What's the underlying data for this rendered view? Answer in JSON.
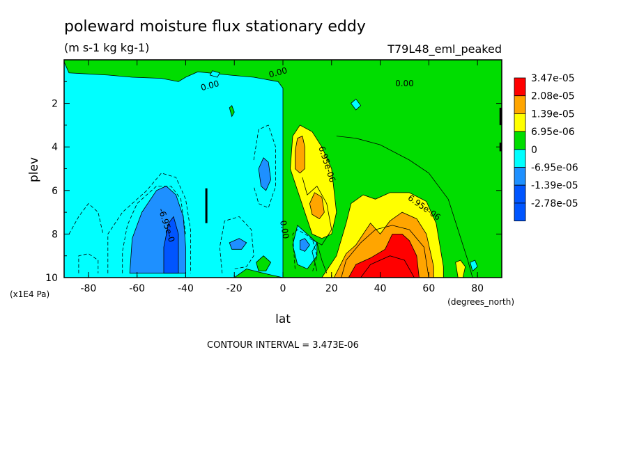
{
  "chart_data": {
    "type": "heatmap",
    "title": "poleward moisture flux stationary eddy",
    "subtitle": "(m s-1 kg kg-1)",
    "run_label": "T79L48_eml_peaked",
    "xlabel": "lat",
    "ylabel": "plev",
    "x_units": "(degrees_north)",
    "y_units": "(x1E4 Pa)",
    "xlim": [
      -90,
      90
    ],
    "ylim": [
      0,
      10
    ],
    "y_inverted": true,
    "x_ticks": [
      -80,
      -60,
      -40,
      -20,
      0,
      20,
      40,
      60,
      80
    ],
    "y_ticks": [
      2,
      4,
      6,
      8,
      10
    ],
    "contour_interval_text": "CONTOUR INTERVAL = 3.473E-06",
    "legend": {
      "placement": "right",
      "levels": [
        {
          "label": "3.47e-05",
          "color": "#ff0000"
        },
        {
          "label": "2.08e-05",
          "color": "#ffa500"
        },
        {
          "label": "1.39e-05",
          "color": "#ffff00"
        },
        {
          "label": "6.95e-06",
          "color": "#00dd00"
        },
        {
          "label": "0",
          "color": "#00ffff"
        },
        {
          "label": "-6.95e-06",
          "color": "#1e90ff"
        },
        {
          "label": "-1.39e-05",
          "color": "#0055ff"
        },
        {
          "label": "-2.78e-05",
          "color": "#0055ff"
        }
      ]
    },
    "background_color": "#00dd00",
    "regions": [
      {
        "color": "#00ffff",
        "points": [
          [
            -90,
            0.1
          ],
          [
            -90,
            10
          ],
          [
            -20,
            10
          ],
          [
            -15,
            9.6
          ],
          [
            -8,
            9.8
          ],
          [
            0,
            10
          ],
          [
            0,
            1.3
          ],
          [
            -2,
            1.0
          ],
          [
            -12,
            0.8
          ],
          [
            -22,
            0.7
          ],
          [
            -35,
            0.55
          ],
          [
            -40,
            0.8
          ],
          [
            -43,
            1.0
          ],
          [
            -50,
            0.85
          ],
          [
            -62,
            0.8
          ],
          [
            -72,
            0.7
          ],
          [
            -80,
            0.65
          ],
          [
            -88,
            0.6
          ]
        ]
      },
      {
        "color": "#00ffff",
        "points": [
          [
            6,
            7.6
          ],
          [
            10,
            8.0
          ],
          [
            14,
            8.4
          ],
          [
            14,
            9.0
          ],
          [
            10,
            9.6
          ],
          [
            6,
            9.4
          ],
          [
            4,
            8.5
          ]
        ]
      },
      {
        "color": "#1e90ff",
        "points": [
          [
            -63,
            9.8
          ],
          [
            -62,
            8.2
          ],
          [
            -58,
            7.0
          ],
          [
            -52,
            6.0
          ],
          [
            -48,
            5.8
          ],
          [
            -44,
            6.2
          ],
          [
            -41,
            7.2
          ],
          [
            -40,
            8.6
          ],
          [
            -40,
            9.8
          ]
        ]
      },
      {
        "color": "#0055ff",
        "points": [
          [
            -49,
            9.8
          ],
          [
            -49,
            8.6
          ],
          [
            -47,
            7.5
          ],
          [
            -45,
            7.2
          ],
          [
            -43,
            8.0
          ],
          [
            -43,
            9.8
          ]
        ]
      },
      {
        "color": "#1e90ff",
        "points": [
          [
            -10,
            5.0
          ],
          [
            -8,
            4.5
          ],
          [
            -6,
            4.7
          ],
          [
            -5,
            5.5
          ],
          [
            -7,
            6.0
          ],
          [
            -9,
            5.8
          ]
        ]
      },
      {
        "color": "#1e90ff",
        "points": [
          [
            -22,
            8.4
          ],
          [
            -18,
            8.2
          ],
          [
            -15,
            8.4
          ],
          [
            -17,
            8.7
          ],
          [
            -21,
            8.7
          ]
        ]
      },
      {
        "color": "#1e90ff",
        "points": [
          [
            7,
            8.3
          ],
          [
            9,
            8.2
          ],
          [
            11,
            8.5
          ],
          [
            9,
            8.8
          ],
          [
            7,
            8.7
          ]
        ]
      },
      {
        "color": "#00ffff",
        "points": [
          [
            -30,
            0.7
          ],
          [
            -29,
            0.5
          ],
          [
            -26,
            0.6
          ],
          [
            -27,
            0.8
          ]
        ]
      },
      {
        "color": "#00ffff",
        "points": [
          [
            28,
            2.0
          ],
          [
            30,
            1.8
          ],
          [
            32,
            2.1
          ],
          [
            30,
            2.3
          ]
        ]
      },
      {
        "color": "#00ffff",
        "points": [
          [
            77,
            9.3
          ],
          [
            79,
            9.2
          ],
          [
            80,
            9.5
          ],
          [
            78,
            9.7
          ]
        ]
      },
      {
        "color": "#00dd00",
        "points": [
          [
            -11,
            9.3
          ],
          [
            -8,
            9.0
          ],
          [
            -5,
            9.3
          ],
          [
            -7,
            9.7
          ],
          [
            -10,
            9.7
          ]
        ]
      },
      {
        "color": "#00dd00",
        "points": [
          [
            -22,
            2.2
          ],
          [
            -21,
            2.1
          ],
          [
            -20,
            2.4
          ],
          [
            -21,
            2.6
          ]
        ]
      },
      {
        "color": "#ffff00",
        "points": [
          [
            3,
            5.0
          ],
          [
            4,
            3.5
          ],
          [
            7,
            3.0
          ],
          [
            12,
            3.3
          ],
          [
            16,
            4.0
          ],
          [
            20,
            5.0
          ],
          [
            22,
            7.0
          ],
          [
            20,
            8.0
          ],
          [
            16,
            8.2
          ],
          [
            12,
            8.0
          ],
          [
            9,
            7.0
          ],
          [
            6,
            6.0
          ]
        ]
      },
      {
        "color": "#ffa500",
        "points": [
          [
            5,
            4.2
          ],
          [
            6,
            3.6
          ],
          [
            8,
            3.5
          ],
          [
            9,
            4.0
          ],
          [
            9,
            5.0
          ],
          [
            7,
            5.2
          ],
          [
            5,
            5.0
          ]
        ]
      },
      {
        "color": "#ffa500",
        "points": [
          [
            11,
            6.6
          ],
          [
            13,
            6.1
          ],
          [
            16,
            6.3
          ],
          [
            17,
            7.0
          ],
          [
            15,
            7.3
          ],
          [
            12,
            7.1
          ]
        ]
      },
      {
        "color": "#ffff00",
        "points": [
          [
            16,
            10
          ],
          [
            22,
            9.0
          ],
          [
            26,
            7.5
          ],
          [
            28,
            6.6
          ],
          [
            33,
            6.2
          ],
          [
            38,
            6.4
          ],
          [
            44,
            6.1
          ],
          [
            52,
            6.1
          ],
          [
            59,
            6.5
          ],
          [
            63,
            7.5
          ],
          [
            66,
            9.5
          ],
          [
            66,
            10
          ]
        ]
      },
      {
        "color": "#ffff00",
        "points": [
          [
            71,
            9.3
          ],
          [
            73,
            9.2
          ],
          [
            75,
            9.5
          ],
          [
            74,
            10
          ],
          [
            72,
            10
          ]
        ]
      },
      {
        "color": "#ffa500",
        "points": [
          [
            21,
            10
          ],
          [
            26,
            8.9
          ],
          [
            30,
            8.5
          ],
          [
            36,
            7.5
          ],
          [
            40,
            8.0
          ],
          [
            44,
            7.4
          ],
          [
            49,
            7.0
          ],
          [
            55,
            7.3
          ],
          [
            59,
            8.0
          ],
          [
            62,
            9.5
          ],
          [
            62,
            10
          ]
        ]
      },
      {
        "color": "#ff0000",
        "points": [
          [
            27,
            10
          ],
          [
            30,
            9.4
          ],
          [
            36,
            9.1
          ],
          [
            42,
            8.7
          ],
          [
            45,
            8.0
          ],
          [
            49,
            8.0
          ],
          [
            52,
            8.3
          ],
          [
            55,
            9.0
          ],
          [
            56,
            10
          ]
        ]
      }
    ],
    "contour_labels": [
      {
        "text": "0.00",
        "x": -30,
        "y": 1.2,
        "angle": -15
      },
      {
        "text": "0.00",
        "x": -2,
        "y": 0.6,
        "angle": -15
      },
      {
        "text": "0.00",
        "x": 50,
        "y": 1.1,
        "angle": 0
      },
      {
        "text": "6.95e-06",
        "x": 18,
        "y": 4.8,
        "angle": 72
      },
      {
        "text": "6.95e-06",
        "x": 58,
        "y": 6.8,
        "angle": 35
      },
      {
        "text": "-6.95e-0",
        "x": -48,
        "y": 7.6,
        "angle": 72
      },
      {
        "text": "0.00",
        "x": 0.5,
        "y": 7.8,
        "angle": 80
      }
    ],
    "contour_lines": [
      {
        "style": "dashed",
        "points": [
          [
            -84,
            9.8
          ],
          [
            -84,
            9.0
          ],
          [
            -80,
            8.9
          ],
          [
            -76,
            9.2
          ],
          [
            -76,
            9.8
          ]
        ]
      },
      {
        "style": "dashed",
        "points": [
          [
            -72,
            9.8
          ],
          [
            -72,
            8.0
          ],
          [
            -66,
            7.0
          ],
          [
            -62,
            6.6
          ],
          [
            -56,
            6.0
          ],
          [
            -50,
            5.2
          ],
          [
            -44,
            5.4
          ],
          [
            -40,
            6.4
          ],
          [
            -38,
            7.8
          ],
          [
            -38,
            9.8
          ]
        ]
      },
      {
        "style": "dashed",
        "points": [
          [
            -66,
            9.8
          ],
          [
            -66,
            8.8
          ],
          [
            -64,
            7.6
          ],
          [
            -60,
            6.6
          ],
          [
            -52,
            5.8
          ],
          [
            -46,
            5.8
          ],
          [
            -42,
            6.4
          ],
          [
            -40,
            8.0
          ]
        ]
      },
      {
        "style": "dashed",
        "points": [
          [
            -25,
            9.8
          ],
          [
            -26,
            8.6
          ],
          [
            -24,
            7.4
          ],
          [
            -18,
            7.2
          ],
          [
            -13,
            7.8
          ],
          [
            -12,
            9.0
          ],
          [
            -15,
            9.5
          ],
          [
            -20,
            9.6
          ]
        ]
      },
      {
        "style": "dashed",
        "points": [
          [
            -12,
            4.6
          ],
          [
            -10,
            3.2
          ],
          [
            -6,
            3.0
          ],
          [
            -3,
            4.0
          ],
          [
            -3,
            5.8
          ],
          [
            -6,
            6.8
          ],
          [
            -10,
            6.6
          ],
          [
            -12,
            5.8
          ]
        ]
      },
      {
        "style": "dashed",
        "points": [
          [
            -88,
            8.0
          ],
          [
            -84,
            7.2
          ],
          [
            -80,
            6.6
          ],
          [
            -76,
            7.0
          ],
          [
            -74,
            8.0
          ]
        ]
      },
      {
        "style": "dashed",
        "points": [
          [
            5,
            9.6
          ],
          [
            4,
            8.0
          ],
          [
            6,
            7.8
          ],
          [
            12,
            8.2
          ],
          [
            14,
            9.0
          ],
          [
            12,
            9.8
          ]
        ]
      },
      {
        "style": "solid",
        "points": [
          [
            22,
            3.5
          ],
          [
            30,
            3.6
          ],
          [
            40,
            3.9
          ],
          [
            52,
            4.6
          ],
          [
            60,
            5.2
          ],
          [
            68,
            6.4
          ],
          [
            72,
            7.8
          ],
          [
            76,
            9.2
          ],
          [
            78,
            10
          ]
        ]
      },
      {
        "style": "solid",
        "points": [
          [
            24,
            10
          ],
          [
            26,
            9.2
          ],
          [
            32,
            8.4
          ],
          [
            38,
            7.8
          ],
          [
            45,
            7.6
          ],
          [
            52,
            7.8
          ],
          [
            58,
            8.6
          ],
          [
            60,
            10
          ]
        ]
      },
      {
        "style": "solid",
        "points": [
          [
            32,
            10
          ],
          [
            36,
            9.4
          ],
          [
            44,
            9.0
          ],
          [
            50,
            9.2
          ],
          [
            54,
            10
          ]
        ]
      },
      {
        "style": "solid",
        "points": [
          [
            8,
            5.4
          ],
          [
            10,
            6.2
          ],
          [
            14,
            5.8
          ],
          [
            18,
            6.6
          ],
          [
            20,
            7.8
          ],
          [
            16,
            8.5
          ],
          [
            11,
            8.2
          ]
        ]
      },
      {
        "style": "solid",
        "points": [
          [
            14,
            9.7
          ],
          [
            12,
            8.8
          ],
          [
            14,
            8.4
          ],
          [
            16,
            9.2
          ],
          [
            18,
            9.8
          ]
        ]
      }
    ],
    "bars": [
      {
        "x": -31.5,
        "y0": 5.9,
        "y1": 7.5,
        "style": "thick"
      },
      {
        "x": 89.5,
        "y0": 2.2,
        "y1": 3.0,
        "style": "thick"
      },
      {
        "x": 89.5,
        "y0": 3.8,
        "y1": 4.2,
        "style": "thick"
      }
    ]
  }
}
